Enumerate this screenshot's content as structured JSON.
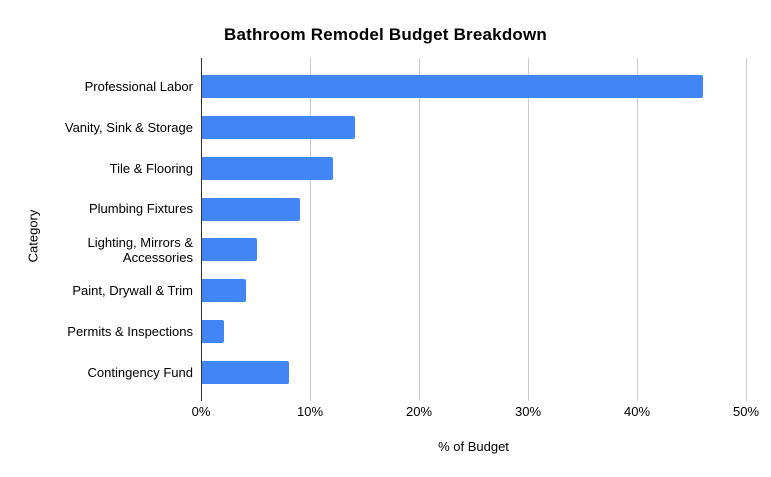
{
  "chart_data": {
    "type": "bar",
    "orientation": "horizontal",
    "title": "Bathroom Remodel Budget Breakdown",
    "xlabel": "% of Budget",
    "ylabel": "Category",
    "categories": [
      "Professional Labor",
      "Vanity, Sink & Storage",
      "Tile & Flooring",
      "Plumbing Fixtures",
      "Lighting, Mirrors & Accessories",
      "Paint, Drywall & Trim",
      "Permits & Inspections",
      "Contingency Fund"
    ],
    "values": [
      46,
      14,
      12,
      9,
      5,
      4,
      2,
      8
    ],
    "unit": "%",
    "xlim": [
      0,
      50
    ],
    "xticks": [
      "0%",
      "10%",
      "20%",
      "30%",
      "40%",
      "50%"
    ],
    "xtick_values": [
      0,
      10,
      20,
      30,
      40,
      50
    ],
    "grid": true,
    "legend": "none",
    "colors": {
      "bar": "#4285F4",
      "gridline": "#cccccc",
      "zero_axis": "#333333",
      "text": "#000000",
      "background": "#ffffff"
    }
  }
}
